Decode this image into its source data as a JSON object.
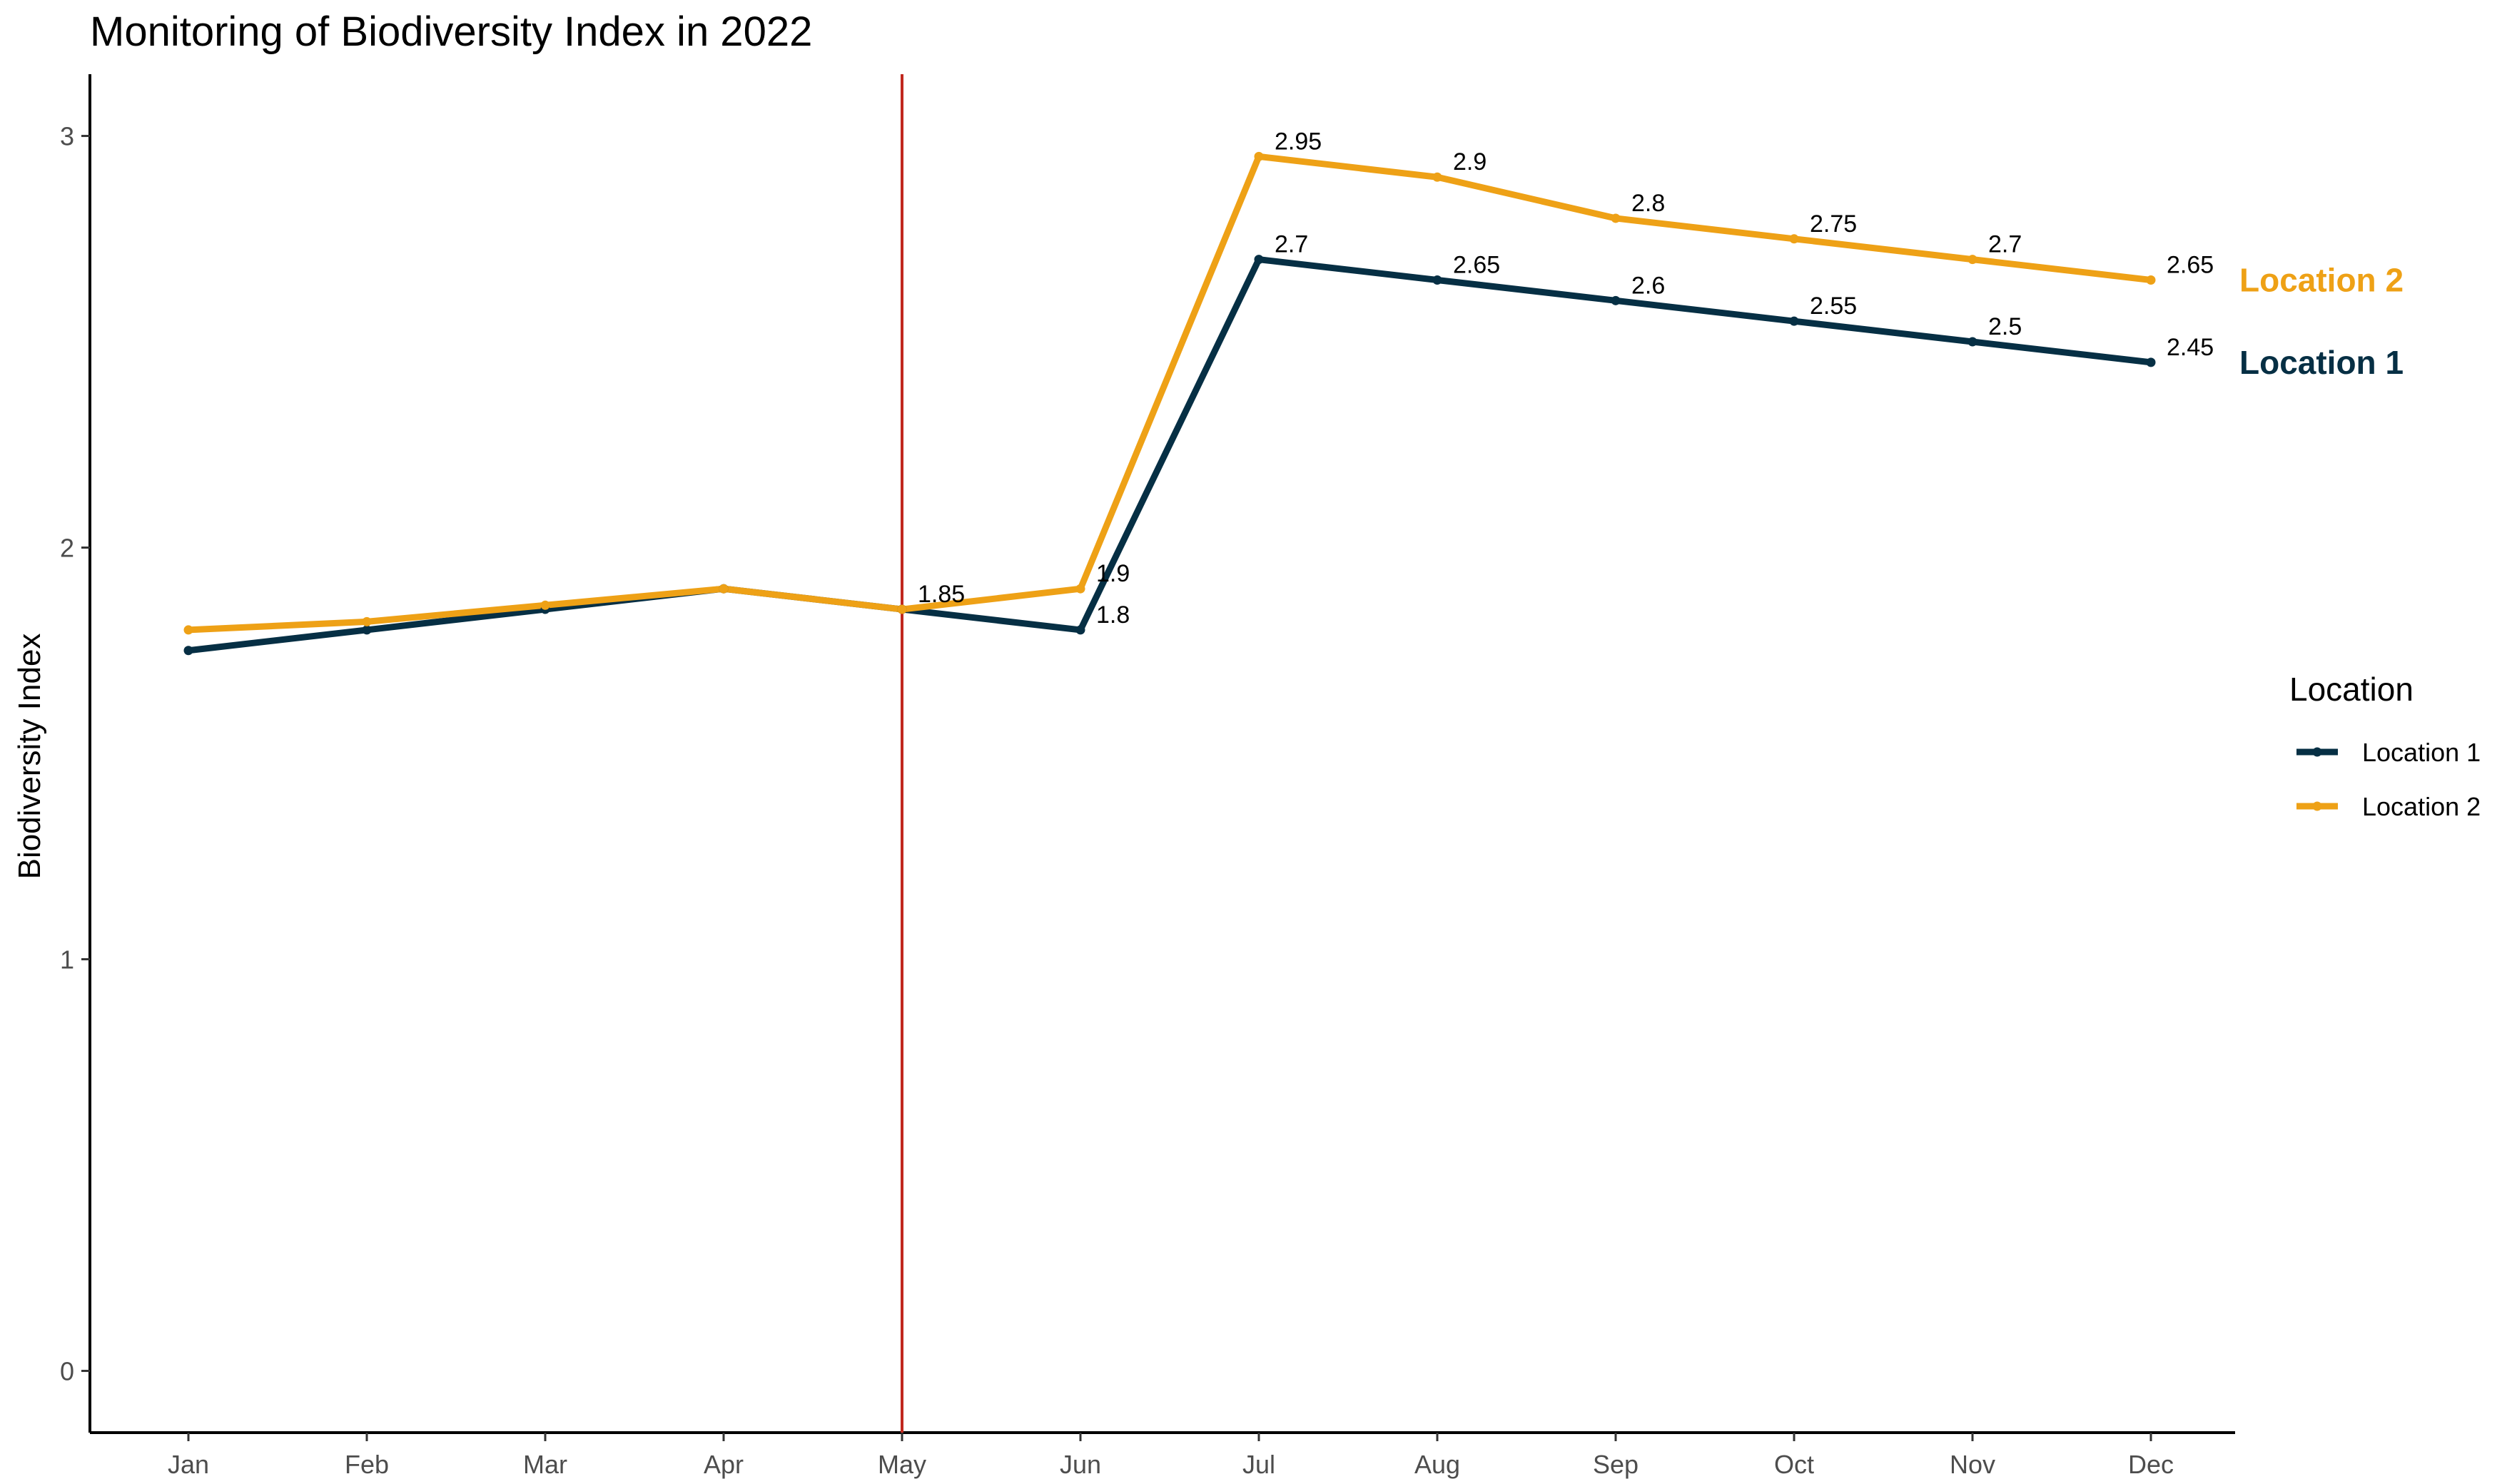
{
  "chart_data": {
    "type": "line",
    "title": "Monitoring of Biodiversity Index in 2022",
    "xlabel": "",
    "ylabel": "Biodiversity Index",
    "categories": [
      "Jan",
      "Feb",
      "Mar",
      "Apr",
      "May",
      "Jun",
      "Jul",
      "Aug",
      "Sep",
      "Oct",
      "Nov",
      "Dec"
    ],
    "ylim": [
      -0.15,
      3.15
    ],
    "yticks": [
      0,
      1,
      2,
      3
    ],
    "grid": false,
    "legend_position": "right",
    "legend_title": "Location",
    "vertical_marker": {
      "category": "May",
      "color": "#c0281e"
    },
    "series": [
      {
        "name": "Location 1",
        "color": "#062f44",
        "values": [
          1.75,
          1.8,
          1.85,
          1.9,
          1.85,
          1.8,
          2.7,
          2.65,
          2.6,
          2.55,
          2.5,
          2.45
        ],
        "labels": [
          null,
          null,
          null,
          null,
          null,
          "1.8",
          "2.7",
          "2.65",
          "2.6",
          "2.55",
          "2.5",
          "2.45"
        ],
        "end_label": "Location 1"
      },
      {
        "name": "Location 2",
        "color": "#eea116",
        "values": [
          1.8,
          1.82,
          1.86,
          1.9,
          1.85,
          1.9,
          2.95,
          2.9,
          2.8,
          2.75,
          2.7,
          2.65
        ],
        "labels": [
          null,
          null,
          null,
          null,
          "1.85",
          "1.9",
          "2.95",
          "2.9",
          "2.8",
          "2.75",
          "2.7",
          "2.65"
        ],
        "end_label": "Location 2"
      }
    ]
  }
}
